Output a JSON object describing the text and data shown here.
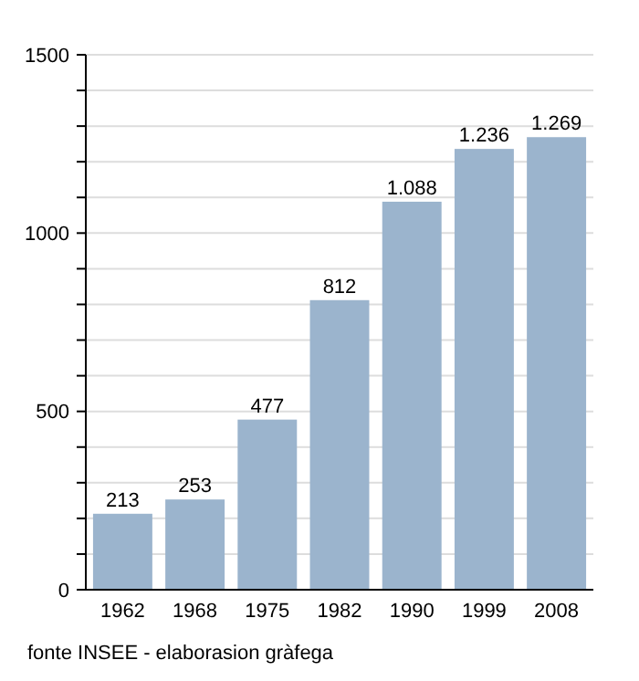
{
  "chart_data": {
    "type": "bar",
    "categories": [
      "1962",
      "1968",
      "1975",
      "1982",
      "1990",
      "1999",
      "2008"
    ],
    "values": [
      213,
      253,
      477,
      812,
      1088,
      1236,
      1269
    ],
    "value_labels": [
      "213",
      "253",
      "477",
      "812",
      "1.088",
      "1.236",
      "1.269"
    ],
    "color": "#9bb4cd",
    "ylim": [
      0,
      1500
    ],
    "yticks": [
      0,
      {
        "value": 100,
        "label": null
      },
      {
        "value": 200,
        "label": null
      },
      {
        "value": 300,
        "label": null
      },
      {
        "value": 400,
        "label": null
      },
      500,
      {
        "value": 600,
        "label": null
      },
      {
        "value": 700,
        "label": null
      },
      {
        "value": 800,
        "label": null
      },
      {
        "value": 900,
        "label": null
      },
      1000,
      {
        "value": 1100,
        "label": null
      },
      {
        "value": 1200,
        "label": null
      },
      {
        "value": 1300,
        "label": null
      },
      {
        "value": 1400,
        "label": null
      },
      1500
    ],
    "grid": "y",
    "annotations": [
      "fonte INSEE - elaborasion gràfega"
    ]
  }
}
